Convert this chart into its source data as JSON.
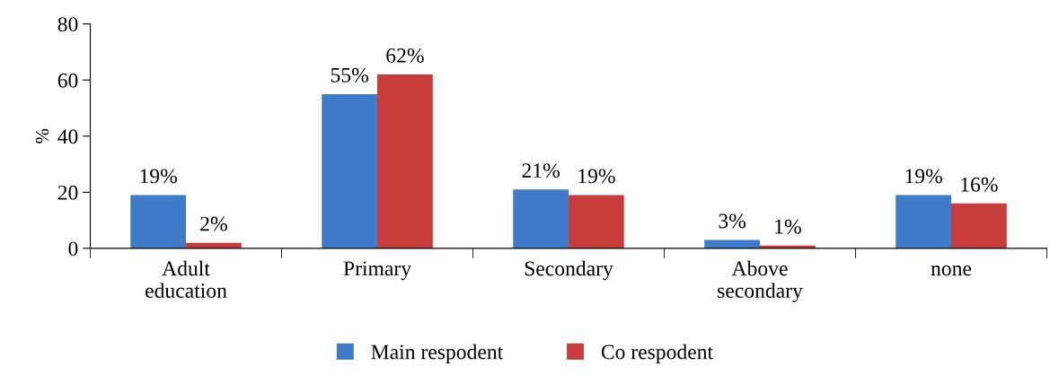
{
  "chart_data": {
    "type": "bar",
    "ylabel": "%",
    "categories": [
      "Adult\neducation",
      "Primary",
      "Secondary",
      "Above\nsecondary",
      "none"
    ],
    "series": [
      {
        "name": "Main respodent",
        "color": "#3f7bc9",
        "values": [
          19,
          55,
          21,
          3,
          19
        ],
        "value_labels": [
          "19%",
          "55%",
          "21%",
          "3%",
          "19%"
        ]
      },
      {
        "name": "Co respodent",
        "color": "#c83d3b",
        "values": [
          2,
          62,
          19,
          1,
          16
        ],
        "value_labels": [
          "2%",
          "62%",
          "19%",
          "1%",
          "16%"
        ]
      }
    ],
    "ylim": [
      0,
      80
    ],
    "yticks": [
      0,
      20,
      40,
      60,
      80
    ],
    "grid": false,
    "legend": "bottom"
  }
}
